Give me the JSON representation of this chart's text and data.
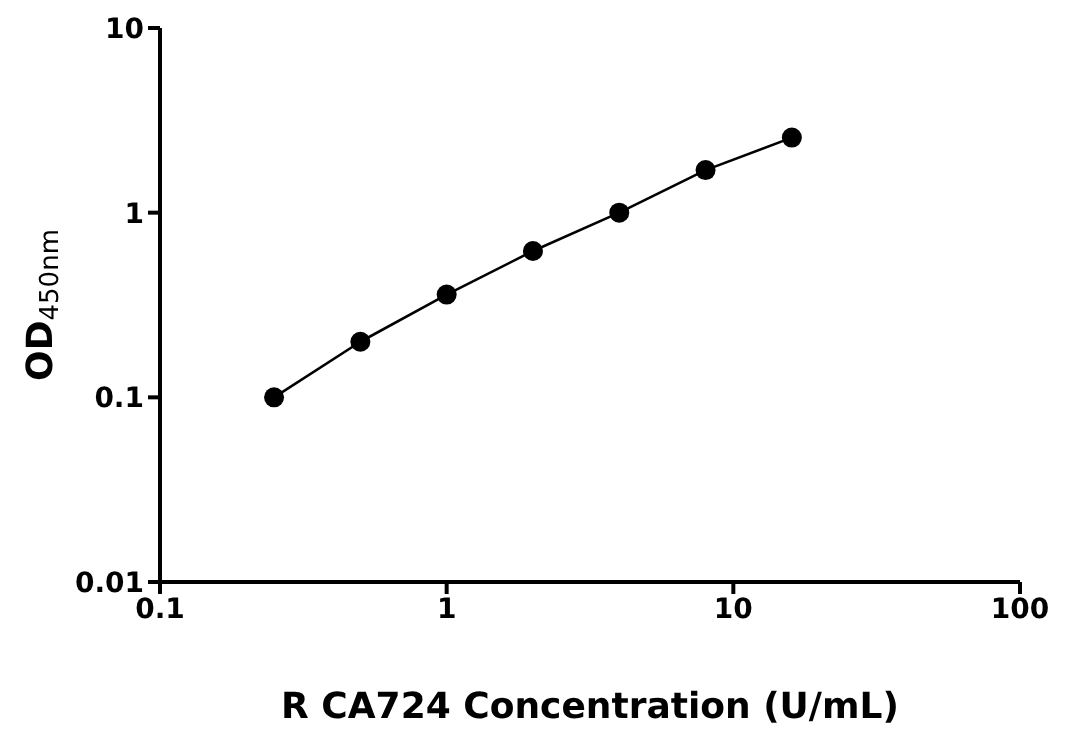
{
  "chart_data": {
    "type": "line",
    "xlabel": "R CA724 Concentration (U/mL)",
    "ylabel": "OD$_{450nm}$",
    "x": [
      0.25,
      0.5,
      1,
      2,
      4,
      8,
      16
    ],
    "series": [
      {
        "color": "#000000",
        "values": [
          0.1,
          0.2,
          0.36,
          0.62,
          1.0,
          1.7,
          2.55
        ]
      }
    ],
    "log": "xy",
    "xlim": [
      0.1,
      100
    ],
    "xticks": [
      0.1,
      1,
      10,
      100
    ],
    "ylim": [
      0.01,
      10
    ],
    "yticks": [
      0.01,
      0.1,
      1,
      10
    ],
    "marker": "circle",
    "line_style": "solid"
  }
}
